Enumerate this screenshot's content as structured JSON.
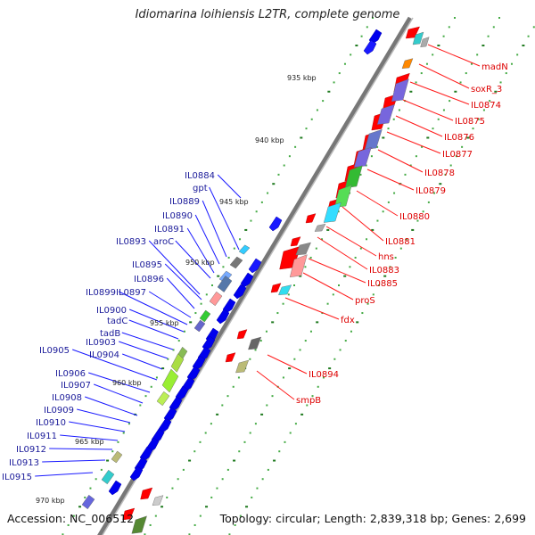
{
  "title": "Idiomarina loihiensis L2TR, complete genome",
  "footer": {
    "accession": "Accession: NC_006512",
    "topology": "Topology: circular; Length: 2,839,318 bp; Genes: 2,699"
  },
  "colors": {
    "forward_strand": "#0000ff",
    "reverse_strand": "#ff0000",
    "backbone": "#888888",
    "tick": "#339933",
    "line_forward": "#1a1aff",
    "line_reverse": "#ff1a1a"
  },
  "kbp_labels": [
    "935 kbp",
    "940 kbp",
    "945 kbp",
    "950 kbp",
    "955 kbp",
    "960 kbp",
    "965 kbp",
    "970 kbp"
  ],
  "reverse_labels": [
    "madN",
    "soxR_3",
    "IL0874",
    "IL0875",
    "IL0876",
    "IL0877",
    "IL0878",
    "IL0879",
    "IL0880",
    "IL0881",
    "hns",
    "IL0883",
    "IL0885",
    "proS",
    "fdx",
    "IL0894",
    "smpB"
  ],
  "forward_labels": [
    "IL0884",
    "gpt",
    "IL0889",
    "IL0890",
    "IL0891",
    "aroC",
    "IL0893",
    "IL0895",
    "IL0896",
    "IL0897",
    "IL0899",
    "IL0900",
    "tadC",
    "tadB",
    "IL0903",
    "IL0904",
    "IL0905",
    "IL0906",
    "IL0907",
    "IL0908",
    "IL0909",
    "IL0910",
    "IL0911",
    "IL0912",
    "IL0913",
    "IL0915"
  ]
}
